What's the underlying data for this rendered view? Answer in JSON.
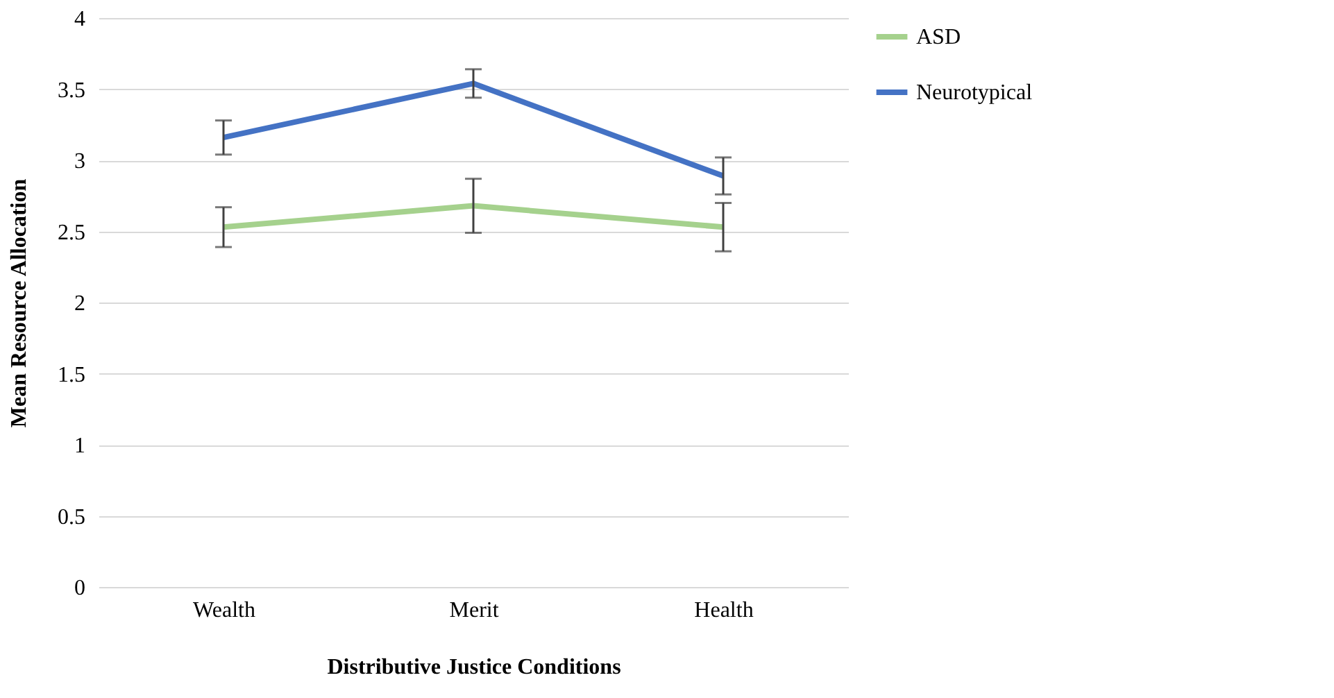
{
  "chart_data": {
    "type": "line",
    "xlabel": "Distributive Justice Conditions",
    "ylabel": "Mean Resource Allocation",
    "categories": [
      "Wealth",
      "Merit",
      "Health"
    ],
    "series": [
      {
        "name": "ASD",
        "color": "#a5d18d",
        "values": [
          2.53,
          2.68,
          2.53
        ],
        "errors": [
          0.14,
          0.19,
          0.17
        ]
      },
      {
        "name": "Neurotypical",
        "color": "#4472c4",
        "values": [
          3.16,
          3.54,
          2.89
        ],
        "errors": [
          0.12,
          0.1,
          0.13
        ]
      }
    ],
    "ylim": [
      0,
      4
    ],
    "yticks": [
      0,
      0.5,
      1,
      1.5,
      2,
      2.5,
      3,
      3.5,
      4
    ],
    "grid": "y",
    "legend": "right",
    "marker": "none",
    "line_style": "solid"
  }
}
